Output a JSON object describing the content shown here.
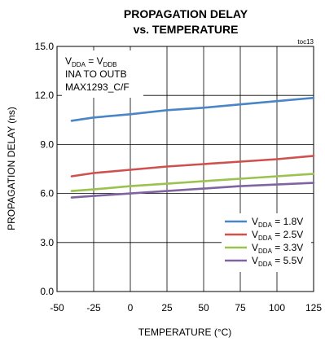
{
  "chart_data": {
    "type": "line",
    "title": "PROPAGATION DELAY",
    "subtitle": "vs. TEMPERATURE",
    "figure_id": "toc13",
    "xlabel": "TEMPERATURE (°C)",
    "ylabel": "PROPAGATION DELAY (ns)",
    "xlim": [
      -50,
      125
    ],
    "ylim": [
      0,
      15
    ],
    "x_ticks": [
      -50,
      -25,
      0,
      25,
      50,
      75,
      100,
      125
    ],
    "x_tick_labels": [
      "-50",
      "-25",
      "0",
      "25",
      "50",
      "75",
      "100",
      "125"
    ],
    "y_ticks": [
      0,
      3,
      6,
      9,
      12,
      15
    ],
    "y_tick_labels": [
      "0.0",
      "3.0",
      "6.0",
      "9.0",
      "12.0",
      "15.0"
    ],
    "grid": true,
    "legend_position": "bottom-right",
    "annotation_lines": [
      {
        "main": "V",
        "sub": "DDA",
        "rest": " = V",
        "sub2": "DDB"
      },
      {
        "main": "INA TO OUTB",
        "sub": "",
        "rest": "",
        "sub2": ""
      },
      {
        "main": "MAX1293_C/F",
        "sub": "",
        "rest": "",
        "sub2": ""
      }
    ],
    "x": [
      -40,
      -25,
      0,
      25,
      50,
      75,
      100,
      125
    ],
    "series": [
      {
        "name": "V",
        "name_sub": "DDA",
        "name_rest": " = 1.8V",
        "color": "#4a86c5",
        "values": [
          10.45,
          10.65,
          10.85,
          11.1,
          11.25,
          11.45,
          11.65,
          11.85
        ]
      },
      {
        "name": "V",
        "name_sub": "DDA",
        "name_rest": " = 2.5V",
        "color": "#d0504e",
        "values": [
          7.05,
          7.25,
          7.45,
          7.65,
          7.8,
          7.95,
          8.1,
          8.3
        ]
      },
      {
        "name": "V",
        "name_sub": "DDA",
        "name_rest": " = 3.3V",
        "color": "#9bc24e",
        "values": [
          6.15,
          6.25,
          6.45,
          6.6,
          6.75,
          6.9,
          7.05,
          7.2
        ]
      },
      {
        "name": "V",
        "name_sub": "DDA",
        "name_rest": " = 5.5V",
        "color": "#8064a2",
        "values": [
          5.75,
          5.85,
          6.0,
          6.15,
          6.3,
          6.45,
          6.55,
          6.65
        ]
      }
    ]
  }
}
